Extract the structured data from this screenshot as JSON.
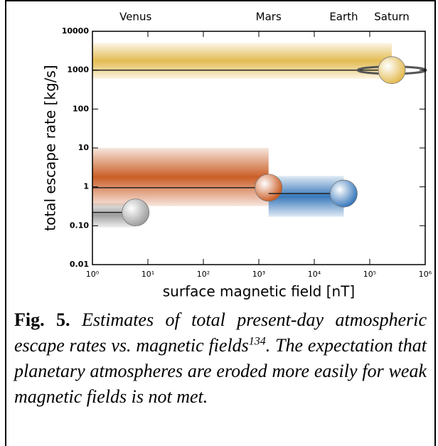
{
  "chart_data": {
    "type": "range",
    "x_label": "surface magnetic field [nT]",
    "y_label": "total escape rate [kg/s]",
    "log_x": true,
    "log_y": true,
    "xlim": [
      1,
      1000000
    ],
    "ylim": [
      0.01,
      10000
    ],
    "xticks": [
      {
        "value": 1,
        "label": "10⁰"
      },
      {
        "value": 10,
        "label": "10¹"
      },
      {
        "value": 100,
        "label": "10²"
      },
      {
        "value": 1000,
        "label": "10³"
      },
      {
        "value": 10000,
        "label": "10⁴"
      },
      {
        "value": 100000,
        "label": "10⁵"
      },
      {
        "value": 1000000,
        "label": "10⁶"
      }
    ],
    "yticks": [
      0.01,
      {
        "value": 0.1,
        "label": "0.10"
      },
      1,
      10,
      100,
      1000,
      10000
    ],
    "series": [
      {
        "name": "Venus",
        "color": "#9a9a9a",
        "x": 6,
        "y": 0.22,
        "x_range": [
          1,
          6
        ],
        "y_range": [
          0.09,
          0.39
        ]
      },
      {
        "name": "Mars",
        "color": "#c8561c",
        "x": 1500,
        "y": 0.95,
        "x_range": [
          1,
          1500
        ],
        "y_range": [
          0.32,
          10
        ]
      },
      {
        "name": "Earth",
        "color": "#2f72b8",
        "x": 34000,
        "y": 0.67,
        "x_range": [
          1500,
          34000
        ],
        "y_range": [
          0.17,
          1.9
        ]
      },
      {
        "name": "Saturn",
        "color": "#e2b84a",
        "x": 250000,
        "y": 1000,
        "x_range": [
          1,
          250000
        ],
        "y_range": [
          600,
          5000
        ]
      }
    ]
  },
  "caption": {
    "label": "Fig. 5.",
    "text": "Estimates of total present-day atmospheric escape rates vs. magnetic fields",
    "ref": "134",
    "text_after": ". The expectation that planetary atmospheres are eroded more easily for weak magnetic fields is not met."
  }
}
